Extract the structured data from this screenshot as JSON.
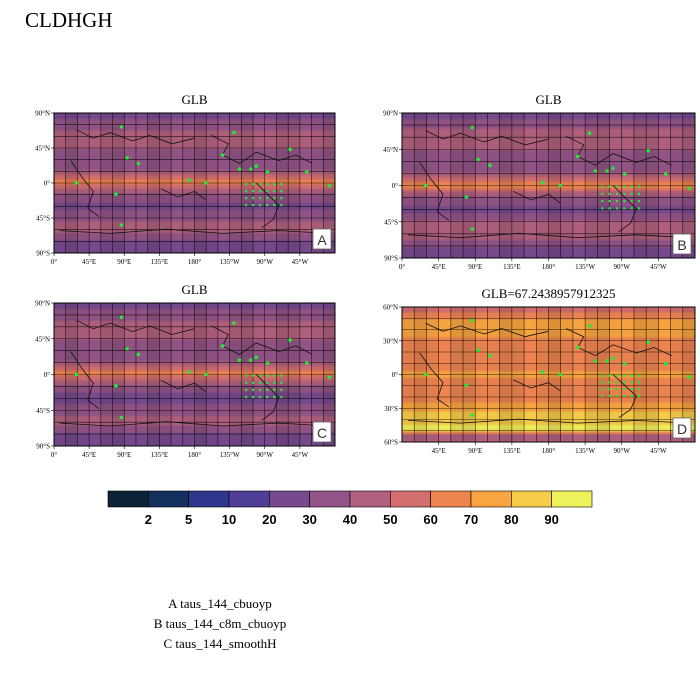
{
  "page": {
    "title": "CLDHGH",
    "colorbar": {
      "labels": [
        "2",
        "5",
        "10",
        "20",
        "30",
        "40",
        "50",
        "60",
        "70",
        "80",
        "90"
      ],
      "colors": [
        "#0c2236",
        "#14305e",
        "#2e378c",
        "#4f3e96",
        "#774a8e",
        "#925486",
        "#b0607e",
        "#d26e6e",
        "#ee8450",
        "#f8a440",
        "#f6cc48",
        "#eef25a"
      ]
    },
    "legend": [
      "A  taus_144_cbuoyp",
      "B  taus_144_c8m_cbuoyp",
      "C  taus_144_smoothH"
    ]
  },
  "chart_data": [
    {
      "type": "heatmap",
      "panel": "A",
      "title": "GLB",
      "x_ticks": [
        "0°",
        "45°E",
        "90°E",
        "135°E",
        "180°",
        "135°W",
        "90°W",
        "45°W"
      ],
      "y_ticks": [
        "90°N",
        "45°N",
        "0°",
        "45°S",
        "90°S"
      ],
      "xlim": [
        0,
        360
      ],
      "ylim": [
        -90,
        90
      ],
      "zonal_profile": {
        "lat": [
          -90,
          -75,
          -60,
          -45,
          -30,
          -15,
          -5,
          0,
          5,
          10,
          20,
          30,
          45,
          60,
          75,
          90
        ],
        "value": [
          20,
          28,
          45,
          38,
          25,
          38,
          55,
          65,
          60,
          52,
          35,
          30,
          42,
          45,
          35,
          25
        ]
      },
      "overlay": "green station markers",
      "grid": true
    },
    {
      "type": "heatmap",
      "panel": "B",
      "title": "GLB",
      "x_ticks": [
        "0°",
        "45°E",
        "90°E",
        "135°E",
        "180°",
        "135°W",
        "90°W",
        "45°W"
      ],
      "y_ticks": [
        "90°N",
        "45°N",
        "0°",
        "45°S",
        "90°S"
      ],
      "xlim": [
        0,
        360
      ],
      "ylim": [
        -90,
        90
      ],
      "zonal_profile": {
        "lat": [
          -90,
          -75,
          -60,
          -45,
          -30,
          -15,
          -5,
          0,
          5,
          10,
          20,
          30,
          45,
          60,
          75,
          90
        ],
        "value": [
          20,
          30,
          48,
          40,
          26,
          38,
          56,
          66,
          61,
          52,
          35,
          30,
          42,
          46,
          36,
          25
        ]
      },
      "overlay": "green station markers",
      "grid": true
    },
    {
      "type": "heatmap",
      "panel": "C",
      "title": "GLB",
      "x_ticks": [
        "0°",
        "45°E",
        "90°E",
        "135°E",
        "180°",
        "135°W",
        "90°W",
        "45°W"
      ],
      "y_ticks": [
        "90°N",
        "45°N",
        "0°",
        "45°S",
        "90°S"
      ],
      "xlim": [
        0,
        360
      ],
      "ylim": [
        -90,
        90
      ],
      "zonal_profile": {
        "lat": [
          -90,
          -75,
          -60,
          -45,
          -30,
          -15,
          -5,
          0,
          5,
          10,
          20,
          30,
          45,
          60,
          75,
          90
        ],
        "value": [
          20,
          27,
          44,
          37,
          25,
          37,
          54,
          64,
          59,
          51,
          34,
          30,
          41,
          45,
          35,
          25
        ]
      },
      "overlay": "green station markers",
      "grid": true
    },
    {
      "type": "heatmap",
      "panel": "D",
      "title": "GLB=67.2438957912325",
      "x_ticks": [
        "45°E",
        "90°E",
        "135°E",
        "180°",
        "135°W",
        "90°W",
        "45°W"
      ],
      "y_ticks": [
        "60°N",
        "30°N",
        "0°",
        "30°S",
        "60°S"
      ],
      "xlim": [
        0,
        360
      ],
      "ylim": [
        -80,
        80
      ],
      "zonal_profile": {
        "lat": [
          -80,
          -72,
          -65,
          -55,
          -45,
          -30,
          -15,
          0,
          15,
          30,
          45,
          55,
          65,
          72,
          80
        ],
        "value": [
          50,
          40,
          95,
          85,
          80,
          68,
          65,
          72,
          65,
          62,
          70,
          72,
          70,
          60,
          55
        ]
      },
      "overlay": "green station markers",
      "grid": true
    }
  ]
}
